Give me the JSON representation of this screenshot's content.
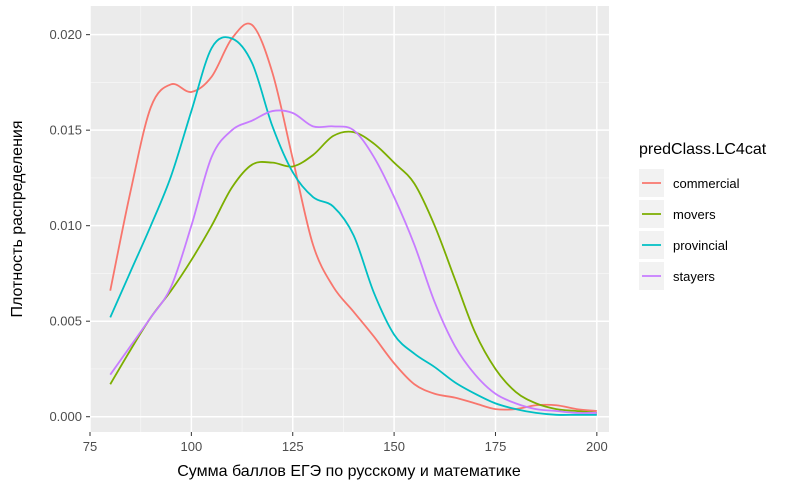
{
  "chart_data": {
    "type": "line",
    "xlabel": "Сумма баллов ЕГЭ по русскому и математике",
    "ylabel": "Плотность распределения",
    "xlim": [
      75,
      203
    ],
    "ylim": [
      -0.0008,
      0.0215
    ],
    "x_ticks": [
      75,
      100,
      125,
      150,
      175,
      200
    ],
    "x_tick_labels": [
      "75",
      "100",
      "125",
      "150",
      "175",
      "200"
    ],
    "y_ticks": [
      0.0,
      0.005,
      0.01,
      0.015,
      0.02
    ],
    "y_tick_labels": [
      "0.000",
      "0.005",
      "0.010",
      "0.015",
      "0.020"
    ],
    "grid": true,
    "legend": {
      "title": "predClass.LC4cat",
      "placement": "right"
    },
    "series": [
      {
        "name": "commercial",
        "color": "#F8766D",
        "x": [
          80,
          85,
          90,
          95,
          100,
          105,
          110,
          115,
          120,
          125,
          130,
          135,
          140,
          145,
          150,
          155,
          160,
          165,
          170,
          175,
          180,
          185,
          190,
          195,
          200
        ],
        "y": [
          0.0066,
          0.0118,
          0.0162,
          0.0174,
          0.017,
          0.0178,
          0.0198,
          0.0205,
          0.018,
          0.0135,
          0.009,
          0.0068,
          0.0055,
          0.0042,
          0.0028,
          0.0017,
          0.0012,
          0.001,
          0.0007,
          0.0004,
          0.0004,
          0.0006,
          0.0006,
          0.0004,
          0.0003
        ]
      },
      {
        "name": "movers",
        "color": "#7CAE00",
        "x": [
          80,
          85,
          90,
          95,
          100,
          105,
          110,
          115,
          120,
          125,
          130,
          135,
          140,
          145,
          150,
          155,
          160,
          165,
          170,
          175,
          180,
          185,
          190,
          195,
          200
        ],
        "y": [
          0.0017,
          0.0035,
          0.0052,
          0.0066,
          0.0082,
          0.01,
          0.012,
          0.0132,
          0.0133,
          0.0131,
          0.0137,
          0.0147,
          0.0149,
          0.0143,
          0.0133,
          0.0122,
          0.01,
          0.0072,
          0.0044,
          0.0025,
          0.0013,
          0.0007,
          0.0004,
          0.0003,
          0.0002
        ]
      },
      {
        "name": "provincial",
        "color": "#00BFC4",
        "x": [
          80,
          85,
          90,
          95,
          100,
          105,
          110,
          115,
          120,
          125,
          130,
          135,
          140,
          145,
          150,
          155,
          160,
          165,
          170,
          175,
          180,
          185,
          190,
          195,
          200
        ],
        "y": [
          0.0052,
          0.0076,
          0.01,
          0.0126,
          0.016,
          0.0193,
          0.0198,
          0.0185,
          0.0152,
          0.0128,
          0.0115,
          0.011,
          0.0095,
          0.0065,
          0.0043,
          0.0033,
          0.0026,
          0.0018,
          0.0012,
          0.0007,
          0.0004,
          0.0002,
          0.0001,
          0.0001,
          0.0001
        ]
      },
      {
        "name": "stayers",
        "color": "#C77CFF",
        "x": [
          80,
          85,
          90,
          95,
          100,
          105,
          110,
          115,
          120,
          125,
          130,
          135,
          140,
          145,
          150,
          155,
          160,
          165,
          170,
          175,
          180,
          185,
          190,
          195,
          200
        ],
        "y": [
          0.0022,
          0.0037,
          0.0052,
          0.0068,
          0.01,
          0.0136,
          0.015,
          0.0155,
          0.016,
          0.0159,
          0.0152,
          0.0152,
          0.015,
          0.0136,
          0.0115,
          0.009,
          0.006,
          0.0037,
          0.0022,
          0.0012,
          0.0007,
          0.0004,
          0.0003,
          0.0002,
          0.0002
        ]
      }
    ]
  }
}
